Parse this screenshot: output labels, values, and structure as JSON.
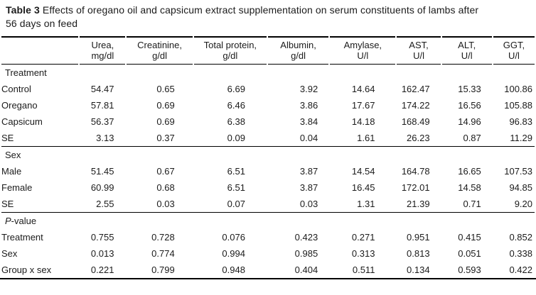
{
  "caption": {
    "label": "Table 3",
    "line1": "Effects of oregano oil and capsicum extract supplementation on serum constituents of lambs after",
    "line2": "56 days on feed"
  },
  "colors": {
    "background": "#ffffff",
    "text": "#1b1b1b",
    "rule": "#000000"
  },
  "table": {
    "columns": [
      {
        "line1": "Urea,",
        "line2": "mg/dl"
      },
      {
        "line1": "Creatinine,",
        "line2": "g/dl"
      },
      {
        "line1": "Total protein,",
        "line2": "g/dl"
      },
      {
        "line1": "Albumin,",
        "line2": "g/dl"
      },
      {
        "line1": "Amylase,",
        "line2": "U/l"
      },
      {
        "line1": "AST,",
        "line2": "U/l"
      },
      {
        "line1": "ALT,",
        "line2": "U/l"
      },
      {
        "line1": "GGT,",
        "line2": "U/l"
      }
    ],
    "sections": [
      {
        "label_parts": [
          {
            "text": "Treatment",
            "italic": false
          }
        ],
        "rows": [
          {
            "label": "Control",
            "values": [
              "54.47",
              "0.65",
              "6.69",
              "3.92",
              "14.64",
              "162.47",
              "15.33",
              "100.86"
            ]
          },
          {
            "label": "Oregano",
            "values": [
              "57.81",
              "0.69",
              "6.46",
              "3.86",
              "17.67",
              "174.22",
              "16.56",
              "105.88"
            ]
          },
          {
            "label": "Capsicum",
            "values": [
              "56.37",
              "0.69",
              "6.38",
              "3.84",
              "14.18",
              "168.49",
              "14.96",
              "96.83"
            ]
          },
          {
            "label": "SE",
            "values": [
              "3.13",
              "0.37",
              "0.09",
              "0.04",
              "1.61",
              "26.23",
              "0.87",
              "11.29"
            ]
          }
        ]
      },
      {
        "label_parts": [
          {
            "text": "Sex",
            "italic": false
          }
        ],
        "rows": [
          {
            "label": "Male",
            "values": [
              "51.45",
              "0.67",
              "6.51",
              "3.87",
              "14.54",
              "164.78",
              "16.65",
              "107.53"
            ]
          },
          {
            "label": "Female",
            "values": [
              "60.99",
              "0.68",
              "6.51",
              "3.87",
              "16.45",
              "172.01",
              "14.58",
              "94.85"
            ]
          },
          {
            "label": "SE",
            "values": [
              "2.55",
              "0.03",
              "0.07",
              "0.03",
              "1.31",
              "21.39",
              "0.71",
              "9.20"
            ]
          }
        ]
      },
      {
        "label_parts": [
          {
            "text": "P",
            "italic": true
          },
          {
            "text": "-value",
            "italic": false
          }
        ],
        "rows": [
          {
            "label": "Treatment",
            "values": [
              "0.755",
              "0.728",
              "0.076",
              "0.423",
              "0.271",
              "0.951",
              "0.415",
              "0.852"
            ]
          },
          {
            "label": "Sex",
            "values": [
              "0.013",
              "0.774",
              "0.994",
              "0.985",
              "0.313",
              "0.813",
              "0.051",
              "0.338"
            ]
          },
          {
            "label": "Group x sex",
            "values": [
              "0.221",
              "0.799",
              "0.948",
              "0.404",
              "0.511",
              "0.134",
              "0.593",
              "0.422"
            ]
          }
        ]
      }
    ]
  }
}
